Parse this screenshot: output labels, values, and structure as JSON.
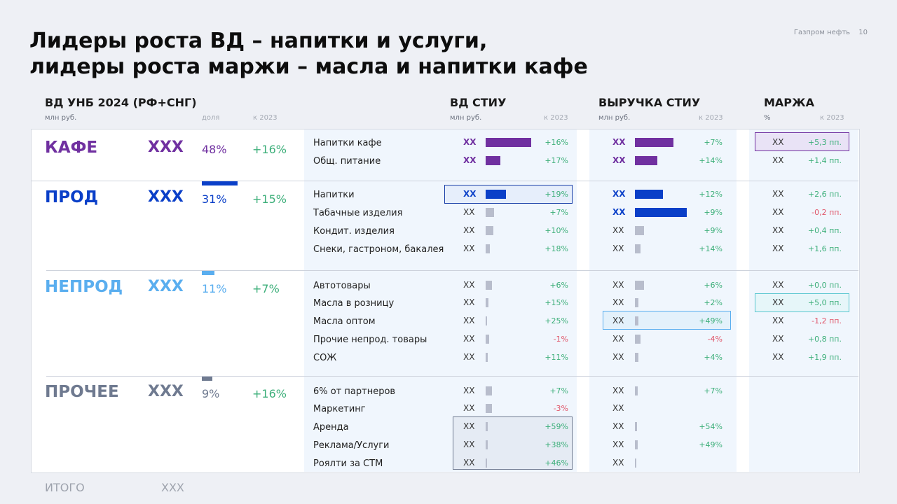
{
  "title": {
    "line1": "Лидеры роста ВД – напитки и услуги,",
    "line2": "лидеры роста маржи – масла и напитки кафе"
  },
  "brand": "Газпром нефть",
  "page_number": "10",
  "headers": {
    "vd_unb": "ВД УНБ 2024 (РФ+СНГ)",
    "vd_unb_unit": "млн руб.",
    "share": "доля",
    "vs2023": "к 2023",
    "vd_stiu": "ВД СТИУ",
    "vd_stiu_unit": "млн руб.",
    "rev_stiu": "ВЫРУЧКА СТИУ",
    "rev_stiu_unit": "млн руб.",
    "margin": "МАРЖА",
    "margin_unit": "%"
  },
  "colors": {
    "cafe": "#7030a0",
    "prod": "#0a3fc8",
    "neprod": "#5aaeef",
    "other": "#6f7a90",
    "grey_bar": "#b8bdcc",
    "positive": "#3daf7a",
    "negative": "#e0566a"
  },
  "groups": [
    {
      "name": "КАФЕ",
      "value": "XXX",
      "share": "48%",
      "growth": "+16%",
      "share_fraction": 0.48
    },
    {
      "name": "ПРОД",
      "value": "XXX",
      "share": "31%",
      "growth": "+15%",
      "share_fraction": 0.31
    },
    {
      "name": "НЕПРОД",
      "value": "XXX",
      "share": "11%",
      "growth": "+7%",
      "share_fraction": 0.11
    },
    {
      "name": "ПРОЧЕЕ",
      "value": "XXX",
      "share": "9%",
      "growth": "+16%",
      "share_fraction": 0.09
    }
  ],
  "rows": [
    {
      "label": "Напитки кафе",
      "vd": "XX",
      "vd_growth": "+16%",
      "vd_level": 0.62,
      "rev": "XX",
      "rev_growth": "+7%",
      "rev_level": 0.52,
      "margin": "XX",
      "margin_delta": "+5,3 пп."
    },
    {
      "label": "Общ. питание",
      "vd": "XX",
      "vd_growth": "+17%",
      "vd_level": 0.2,
      "rev": "XX",
      "rev_growth": "+14%",
      "rev_level": 0.3,
      "margin": "XX",
      "margin_delta": "+1,4 пп."
    },
    {
      "label": "Напитки",
      "vd": "XX",
      "vd_growth": "+19%",
      "vd_level": 0.28,
      "rev": "XX",
      "rev_growth": "+12%",
      "rev_level": 0.38,
      "margin": "XX",
      "margin_delta": "+2,6 пп."
    },
    {
      "label": "Табачные изделия",
      "vd": "XX",
      "vd_growth": "+7%",
      "vd_level": 0.11,
      "rev": "XX",
      "rev_growth": "+9%",
      "rev_level": 0.7,
      "margin": "XX",
      "margin_delta": "-0,2 пп."
    },
    {
      "label": "Кондит. изделия",
      "vd": "XX",
      "vd_growth": "+10%",
      "vd_level": 0.1,
      "rev": "XX",
      "rev_growth": "+9%",
      "rev_level": 0.12,
      "margin": "XX",
      "margin_delta": "+0,4 пп."
    },
    {
      "label": "Снеки, гастроном, бакалея",
      "vd": "XX",
      "vd_growth": "+18%",
      "vd_level": 0.06,
      "rev": "XX",
      "rev_growth": "+14%",
      "rev_level": 0.08,
      "margin": "XX",
      "margin_delta": "+1,6 пп."
    },
    {
      "label": "Автотовары",
      "vd": "XX",
      "vd_growth": "+6%",
      "vd_level": 0.09,
      "rev": "XX",
      "rev_growth": "+6%",
      "rev_level": 0.12,
      "margin": "XX",
      "margin_delta": "+0,0 пп."
    },
    {
      "label": "Масла в розницу",
      "vd": "XX",
      "vd_growth": "+15%",
      "vd_level": 0.04,
      "rev": "XX",
      "rev_growth": "+2%",
      "rev_level": 0.05,
      "margin": "XX",
      "margin_delta": "+5,0 пп."
    },
    {
      "label": "Масла оптом",
      "vd": "XX",
      "vd_growth": "+25%",
      "vd_level": 0.015,
      "rev": "XX",
      "rev_growth": "+49%",
      "rev_level": 0.05,
      "margin": "XX",
      "margin_delta": "-1,2 пп."
    },
    {
      "label": "Прочие непрод. товары",
      "vd": "XX",
      "vd_growth": "-1%",
      "vd_level": 0.05,
      "rev": "XX",
      "rev_growth": "-4%",
      "rev_level": 0.08,
      "margin": "XX",
      "margin_delta": "+0,8 пп."
    },
    {
      "label": "СОЖ",
      "vd": "XX",
      "vd_growth": "+11%",
      "vd_level": 0.03,
      "rev": "XX",
      "rev_growth": "+4%",
      "rev_level": 0.05,
      "margin": "XX",
      "margin_delta": "+1,9 пп."
    },
    {
      "label": "6% от партнеров",
      "vd": "XX",
      "vd_growth": "+7%",
      "vd_level": 0.09,
      "rev": "XX",
      "rev_growth": "+7%",
      "rev_level": 0.04
    },
    {
      "label": "Маркетинг",
      "vd": "XX",
      "vd_growth": "-3%",
      "vd_level": 0.09,
      "rev": "XX",
      "rev_growth": "",
      "rev_level": 0
    },
    {
      "label": "Аренда",
      "vd": "XX",
      "vd_growth": "+59%",
      "vd_level": 0.03,
      "rev": "XX",
      "rev_growth": "+54%",
      "rev_level": 0.03
    },
    {
      "label": "Реклама/Услуги",
      "vd": "XX",
      "vd_growth": "+38%",
      "vd_level": 0.03,
      "rev": "XX",
      "rev_growth": "+49%",
      "rev_level": 0.04
    },
    {
      "label": "Роялти за СТМ",
      "vd": "XX",
      "vd_growth": "+46%",
      "vd_level": 0.02,
      "rev": "XX",
      "rev_growth": "",
      "rev_level": 0.015
    }
  ],
  "total": {
    "label": "ИТОГО",
    "value": "XXX"
  }
}
